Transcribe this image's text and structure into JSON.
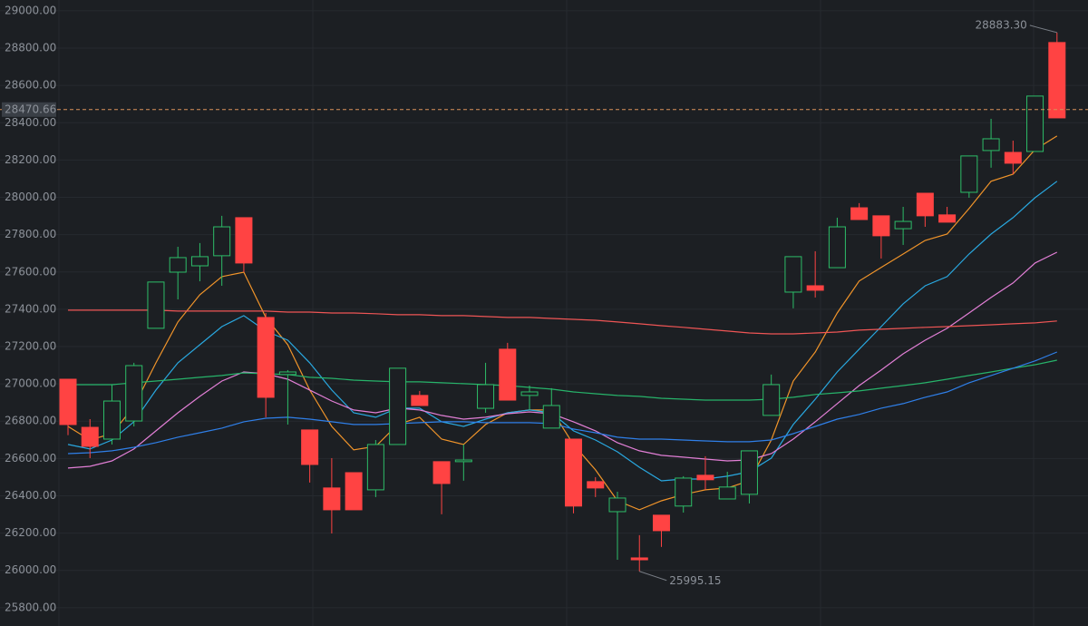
{
  "chart_data": {
    "type": "candlestick",
    "up_color": "#ff4343",
    "down_color": "#2dbd68",
    "open": [
      26782,
      26665,
      26908,
      27098,
      27546,
      27677,
      27682,
      27842,
      27648,
      26928,
      27064,
      26568,
      26325,
      26325,
      26675,
      27084,
      26884,
      26466,
      26592,
      26996,
      26913,
      26957,
      26884,
      26345,
      26442,
      26388,
      26057,
      26213,
      26495,
      26486,
      26447,
      26641,
      26996,
      27682,
      27502,
      27842,
      27881,
      27794,
      27871,
      27901,
      27867,
      28222,
      28314,
      28183,
      28543,
      28426
    ],
    "high": [
      27025,
      26811,
      26996,
      27113,
      27546,
      27735,
      27755,
      27901,
      27891,
      27380,
      27074,
      26753,
      26602,
      26524,
      26699,
      27084,
      26962,
      26583,
      26675,
      27113,
      27220,
      26991,
      26977,
      26704,
      26500,
      26422,
      26189,
      26296,
      26505,
      26612,
      26529,
      26641,
      27050,
      27682,
      27711,
      27891,
      27969,
      27901,
      27949,
      28022,
      27949,
      28222,
      28421,
      28304,
      28543,
      28883.3
    ],
    "low": [
      26725,
      26602,
      26675,
      26772,
      27298,
      27453,
      27550,
      27526,
      27599,
      26821,
      26782,
      26471,
      26198,
      26325,
      26393,
      26675,
      26884,
      26301,
      26481,
      26845,
      26913,
      26860,
      26763,
      26306,
      26393,
      26057,
      25995.15,
      26126,
      26310,
      26432,
      26383,
      26359,
      26831,
      27405,
      27463,
      27623,
      27881,
      27672,
      27745,
      27842,
      27867,
      27998,
      28159,
      28125,
      28246,
      28426
    ],
    "close": [
      27025,
      26767,
      26704,
      26801,
      27298,
      27599,
      27633,
      27687,
      27891,
      27356,
      27050,
      26753,
      26442,
      26524,
      26432,
      26675,
      26938,
      26583,
      26583,
      26869,
      27186,
      26938,
      26763,
      26704,
      26476,
      26315,
      26067,
      26296,
      26345,
      26510,
      26383,
      26408,
      26831,
      27492,
      27526,
      27623,
      27944,
      27901,
      27832,
      28022,
      27906,
      28027,
      28251,
      28241,
      28246,
      28830
    ],
    "lines": [
      {
        "color": "#f0942a",
        "values": [
          26772,
          26699,
          26733,
          26879,
          27113,
          27332,
          27478,
          27575,
          27599,
          27356,
          27210,
          26967,
          26772,
          26646,
          26665,
          26782,
          26821,
          26704,
          26675,
          26782,
          26845,
          26860,
          26860,
          26675,
          26539,
          26373,
          26325,
          26373,
          26407,
          26432,
          26442,
          26480,
          26699,
          27015,
          27171,
          27380,
          27551,
          27624,
          27696,
          27769,
          27803,
          27940,
          28086,
          28124,
          28256,
          28329
        ]
      },
      {
        "color": "#29a8e0",
        "values": [
          26675,
          26651,
          26699,
          26797,
          26967,
          27113,
          27210,
          27307,
          27366,
          27283,
          27234,
          27113,
          26967,
          26845,
          26821,
          26870,
          26870,
          26797,
          26772,
          26811,
          26845,
          26860,
          26845,
          26748,
          26699,
          26636,
          26553,
          26480,
          26490,
          26490,
          26505,
          26529,
          26602,
          26782,
          26918,
          27064,
          27186,
          27307,
          27429,
          27526,
          27575,
          27696,
          27803,
          27891,
          27998,
          28086
        ]
      },
      {
        "color": "#e27fd6",
        "values": [
          26549,
          26558,
          26587,
          26651,
          26748,
          26845,
          26933,
          27015,
          27064,
          27054,
          27025,
          26967,
          26908,
          26860,
          26845,
          26870,
          26860,
          26831,
          26811,
          26821,
          26840,
          26850,
          26840,
          26797,
          26748,
          26685,
          26641,
          26617,
          26607,
          26597,
          26587,
          26592,
          26626,
          26704,
          26797,
          26894,
          26991,
          27074,
          27161,
          27234,
          27298,
          27380,
          27463,
          27541,
          27648,
          27706
        ]
      },
      {
        "color": "#27b36a",
        "values": [
          26996,
          26996,
          26996,
          27006,
          27015,
          27025,
          27035,
          27045,
          27059,
          27054,
          27050,
          27035,
          27030,
          27020,
          27015,
          27011,
          27011,
          27006,
          27001,
          26996,
          26991,
          26981,
          26972,
          26957,
          26947,
          26938,
          26933,
          26923,
          26918,
          26913,
          26913,
          26913,
          26918,
          26928,
          26943,
          26952,
          26962,
          26977,
          26991,
          27006,
          27025,
          27045,
          27064,
          27084,
          27103,
          27127
        ]
      },
      {
        "color": "#2f7fe8",
        "values": [
          26626,
          26631,
          26641,
          26660,
          26685,
          26714,
          26738,
          26763,
          26797,
          26816,
          26821,
          26811,
          26797,
          26782,
          26782,
          26787,
          26792,
          26797,
          26797,
          26792,
          26792,
          26792,
          26787,
          26758,
          26738,
          26714,
          26704,
          26704,
          26699,
          26694,
          26690,
          26690,
          26699,
          26733,
          26772,
          26811,
          26836,
          26870,
          26894,
          26928,
          26957,
          27006,
          27045,
          27084,
          27123,
          27171
        ]
      },
      {
        "color": "#ee5555",
        "values": [
          27395,
          27395,
          27395,
          27395,
          27395,
          27390,
          27390,
          27390,
          27390,
          27390,
          27385,
          27385,
          27380,
          27380,
          27376,
          27371,
          27371,
          27366,
          27366,
          27361,
          27356,
          27356,
          27351,
          27346,
          27341,
          27332,
          27322,
          27312,
          27303,
          27293,
          27283,
          27273,
          27268,
          27268,
          27273,
          27278,
          27288,
          27293,
          27298,
          27303,
          27307,
          27312,
          27317,
          27322,
          27327,
          27337
        ]
      }
    ],
    "current_price": 28470.66,
    "max_annotation": {
      "value": 28883.3,
      "label": "28883.30"
    },
    "min_annotation": 25995.15,
    "ylim": [
      25702,
      29058
    ],
    "yticks": [
      {
        "value": 25800,
        "label": "25800.00"
      },
      {
        "value": 26000,
        "label": "26000.00"
      },
      {
        "value": 26200,
        "label": "26200.00"
      },
      {
        "value": 26400,
        "label": "26400.00"
      },
      {
        "value": 26600,
        "label": "26600.00"
      },
      {
        "value": 26800,
        "label": "26800.00"
      },
      {
        "value": 27000,
        "label": "27000.00"
      },
      {
        "value": 27200,
        "label": "27200.00"
      },
      {
        "value": 27400,
        "label": "27400.00"
      },
      {
        "value": 27600,
        "label": "27600.00"
      },
      {
        "value": 27800,
        "label": "27800.00"
      },
      {
        "value": 28000,
        "label": "28000.00"
      },
      {
        "value": 28200,
        "label": "28200.00"
      },
      {
        "value": 28400,
        "label": "28400.00"
      },
      {
        "value": 28600,
        "label": "28600.00"
      },
      {
        "value": 28800,
        "label": "28800.00"
      },
      {
        "value": 29000,
        "label": "29000.00"
      }
    ],
    "grid": true
  }
}
